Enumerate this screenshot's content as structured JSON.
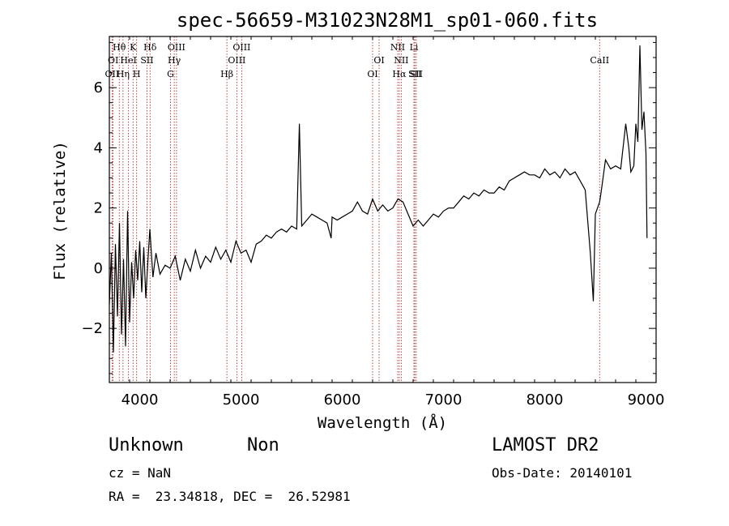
{
  "chart_data": {
    "type": "line",
    "title": "spec-56659-M31023N28M1_sp01-060.fits",
    "xlabel": "Wavelength (Å)",
    "ylabel": "Flux (relative)",
    "xlim": [
      3700,
      9100
    ],
    "ylim": [
      -3.8,
      7.7
    ],
    "x_ticks": [
      4000,
      5000,
      6000,
      7000,
      8000,
      9000
    ],
    "y_ticks": [
      -2,
      0,
      2,
      4,
      6
    ],
    "line_color": "#000000",
    "marker_color": "#b03030",
    "lines": [
      {
        "name": "OII",
        "wavelength": 3727,
        "row": 3
      },
      {
        "name": "OI",
        "wavelength": 3737,
        "row": 2
      },
      {
        "name": "Hθ",
        "wavelength": 3798,
        "row": 1
      },
      {
        "name": "Hη",
        "wavelength": 3835,
        "row": 3
      },
      {
        "name": "HeI",
        "wavelength": 3889,
        "row": 2
      },
      {
        "name": "K",
        "wavelength": 3934,
        "row": 1
      },
      {
        "name": "H",
        "wavelength": 3969,
        "row": 3
      },
      {
        "name": "SII",
        "wavelength": 4072,
        "row": 2
      },
      {
        "name": "Hδ",
        "wavelength": 4102,
        "row": 1
      },
      {
        "name": "G",
        "wavelength": 4304,
        "row": 3
      },
      {
        "name": "Hγ",
        "wavelength": 4341,
        "row": 2
      },
      {
        "name": "OIII",
        "wavelength": 4363,
        "row": 1
      },
      {
        "name": "Hβ",
        "wavelength": 4861,
        "row": 3
      },
      {
        "name": "OIII",
        "wavelength": 4959,
        "row": 2
      },
      {
        "name": "OIII",
        "wavelength": 5007,
        "row": 1
      },
      {
        "name": "OI",
        "wavelength": 6300,
        "row": 3
      },
      {
        "name": "OI",
        "wavelength": 6364,
        "row": 2
      },
      {
        "name": "NII",
        "wavelength": 6548,
        "row": 1
      },
      {
        "name": "Hα",
        "wavelength": 6563,
        "row": 3
      },
      {
        "name": "NII",
        "wavelength": 6583,
        "row": 2
      },
      {
        "name": "Li",
        "wavelength": 6708,
        "row": 1
      },
      {
        "name": "SII",
        "wavelength": 6717,
        "row": 3
      },
      {
        "name": "SII",
        "wavelength": 6731,
        "row": 3
      },
      {
        "name": "CaII",
        "wavelength": 8542,
        "row": 2
      }
    ],
    "series": [
      {
        "x": [
          3700,
          3720,
          3740,
          3760,
          3780,
          3800,
          3820,
          3840,
          3860,
          3880,
          3900,
          3920,
          3940,
          3960,
          3980,
          4000,
          4020,
          4040,
          4060,
          4080,
          4100,
          4130,
          4160,
          4200,
          4250,
          4300,
          4350,
          4400,
          4450,
          4500,
          4550,
          4600,
          4650,
          4700,
          4750,
          4800,
          4850,
          4900,
          4950,
          5000,
          5050,
          5100,
          5150,
          5200,
          5250,
          5300,
          5350,
          5400,
          5450,
          5500,
          5550,
          5577,
          5600,
          5650,
          5700,
          5750,
          5800,
          5850,
          5890,
          5900,
          5950,
          6000,
          6050,
          6100,
          6150,
          6200,
          6250,
          6300,
          6350,
          6400,
          6450,
          6500,
          6550,
          6600,
          6650,
          6700,
          6750,
          6800,
          6850,
          6900,
          6950,
          7000,
          7050,
          7100,
          7150,
          7200,
          7250,
          7300,
          7350,
          7400,
          7450,
          7500,
          7550,
          7600,
          7650,
          7700,
          7750,
          7800,
          7850,
          7900,
          7950,
          8000,
          8050,
          8100,
          8150,
          8200,
          8250,
          8300,
          8350,
          8400,
          8450,
          8480,
          8500,
          8542,
          8560,
          8600,
          8650,
          8700,
          8750,
          8800,
          8830,
          8850,
          8880,
          8900,
          8920,
          8940,
          8960,
          8980,
          9000,
          9010
        ],
        "y": [
          -1.2,
          0.5,
          -2.8,
          0.8,
          -1.6,
          1.5,
          -2.2,
          0.3,
          -2.6,
          1.9,
          -1.8,
          0.2,
          -1.0,
          0.6,
          -0.4,
          0.9,
          -0.8,
          0.7,
          -1.0,
          0.2,
          1.3,
          -0.3,
          0.5,
          -0.2,
          0.1,
          0.0,
          0.4,
          -0.4,
          0.3,
          -0.1,
          0.6,
          0.0,
          0.4,
          0.2,
          0.7,
          0.3,
          0.6,
          0.2,
          0.9,
          0.5,
          0.6,
          0.2,
          0.8,
          0.9,
          1.1,
          1.0,
          1.2,
          1.3,
          1.2,
          1.4,
          1.3,
          4.8,
          1.4,
          1.6,
          1.8,
          1.7,
          1.6,
          1.5,
          1.0,
          1.7,
          1.6,
          1.7,
          1.8,
          1.9,
          2.2,
          1.9,
          1.8,
          2.3,
          1.9,
          2.1,
          1.9,
          2.0,
          2.3,
          2.2,
          1.8,
          1.4,
          1.6,
          1.4,
          1.6,
          1.8,
          1.7,
          1.9,
          2.0,
          2.0,
          2.2,
          2.4,
          2.3,
          2.5,
          2.4,
          2.6,
          2.5,
          2.5,
          2.7,
          2.6,
          2.9,
          3.0,
          3.1,
          3.2,
          3.1,
          3.1,
          3.0,
          3.3,
          3.1,
          3.2,
          3.0,
          3.3,
          3.1,
          3.2,
          2.9,
          2.6,
          0.5,
          -1.1,
          1.8,
          2.2,
          2.6,
          3.6,
          3.3,
          3.4,
          3.3,
          4.8,
          4.0,
          3.2,
          3.4,
          4.8,
          4.2,
          7.4,
          4.6,
          5.2,
          3.8,
          1.0
        ]
      }
    ]
  },
  "info": {
    "object_class": "Unknown",
    "subclass": "Non",
    "survey": "LAMOST DR2",
    "redshift": "cz = NaN",
    "obs_date": "Obs-Date: 20140101",
    "coords": "RA =  23.34818, DEC =  26.52981"
  }
}
